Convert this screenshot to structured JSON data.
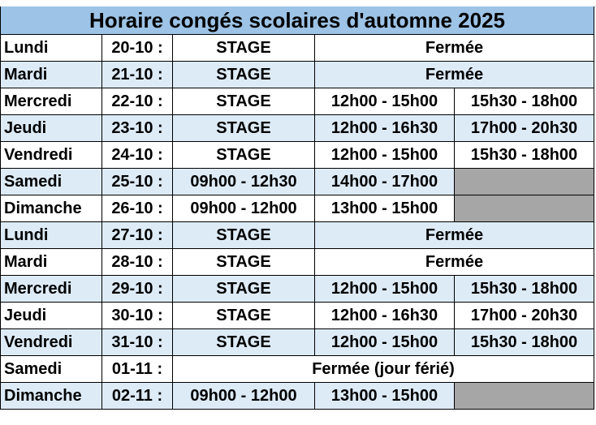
{
  "title": "Horaire congés scolaires d'automne 2025",
  "colors": {
    "header_bg": "#9dc3e6",
    "band_bg": "#ddebf7",
    "empty_cell": "#a6a6a6"
  },
  "rows": [
    {
      "day": "Lundi",
      "date": "20-10 :",
      "cells": [
        "STAGE",
        "Fermée"
      ],
      "band": false
    },
    {
      "day": "Mardi",
      "date": "21-10 :",
      "cells": [
        "STAGE",
        "Fermée"
      ],
      "band": true
    },
    {
      "day": "Mercredi",
      "date": "22-10 :",
      "cells": [
        "STAGE",
        "12h00 - 15h00",
        "15h30 - 18h00"
      ],
      "band": false
    },
    {
      "day": "Jeudi",
      "date": "23-10 :",
      "cells": [
        "STAGE",
        "12h00 - 16h30",
        "17h00 - 20h30"
      ],
      "band": true
    },
    {
      "day": "Vendredi",
      "date": "24-10 :",
      "cells": [
        "STAGE",
        "12h00 - 15h00",
        "15h30 - 18h00"
      ],
      "band": false
    },
    {
      "day": "Samedi",
      "date": "25-10 :",
      "cells": [
        "09h00 - 12h30",
        "14h00 - 17h00",
        ""
      ],
      "band": true
    },
    {
      "day": "Dimanche",
      "date": "26-10 :",
      "cells": [
        "09h00 - 12h00",
        "13h00 - 15h00",
        ""
      ],
      "band": false
    },
    {
      "day": "Lundi",
      "date": "27-10 :",
      "cells": [
        "STAGE",
        "Fermée"
      ],
      "band": true
    },
    {
      "day": "Mardi",
      "date": "28-10 :",
      "cells": [
        "STAGE",
        "Fermée"
      ],
      "band": false
    },
    {
      "day": "Mercredi",
      "date": "29-10 :",
      "cells": [
        "STAGE",
        "12h00 - 15h00",
        "15h30 - 18h00"
      ],
      "band": true
    },
    {
      "day": "Jeudi",
      "date": "30-10 :",
      "cells": [
        "STAGE",
        "12h00 - 16h30",
        "17h00 - 20h30"
      ],
      "band": false
    },
    {
      "day": "Vendredi",
      "date": "31-10 :",
      "cells": [
        "STAGE",
        "12h00 - 15h00",
        "15h30 - 18h00"
      ],
      "band": true
    },
    {
      "day": "Samedi",
      "date": "01-11 :",
      "cells": [
        "Fermée (jour férié)"
      ],
      "band": false
    },
    {
      "day": "Dimanche",
      "date": "02-11 :",
      "cells": [
        "09h00 - 12h00",
        "13h00 - 15h00",
        ""
      ],
      "band": true
    }
  ]
}
